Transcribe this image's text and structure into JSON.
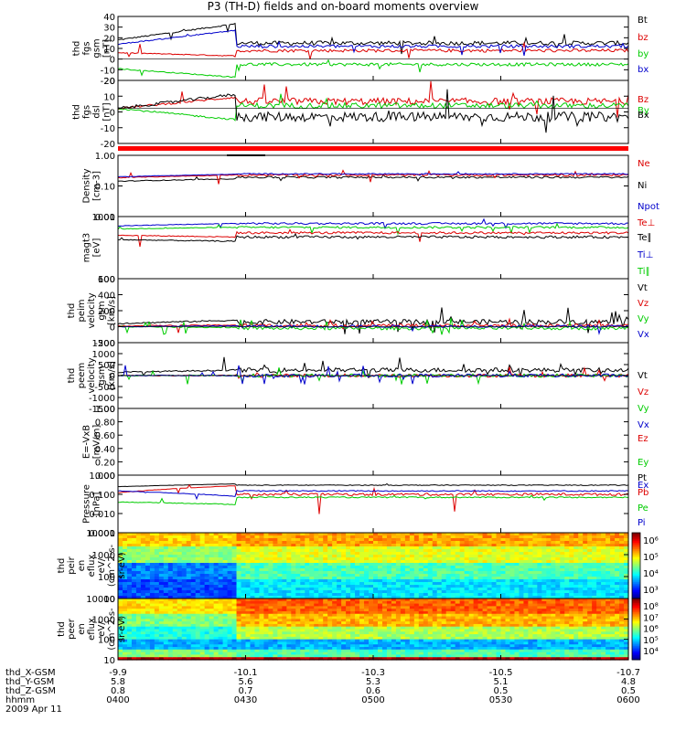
{
  "title": "P3 (TH-D) fields and on-board moments overview",
  "date_label": "2009 Apr 11",
  "time_ticks": [
    "0400",
    "0430",
    "0500",
    "0530",
    "0600"
  ],
  "ephemeris": {
    "rows": [
      {
        "label": "thd_X-GSM",
        "values": [
          "-9.9",
          "-10.1",
          "-10.3",
          "-10.5",
          "-10.7"
        ]
      },
      {
        "label": "thd_Y-GSM",
        "values": [
          "5.8",
          "5.6",
          "5.3",
          "5.1",
          "4.8"
        ]
      },
      {
        "label": "thd_Z-GSM",
        "values": [
          "0.8",
          "0.7",
          "0.6",
          "0.5",
          "0.5"
        ]
      },
      {
        "label": "hhmm",
        "values": [
          "0400",
          "0430",
          "0500",
          "0530",
          "0600"
        ]
      }
    ]
  },
  "colors": {
    "black": "#000000",
    "red": "#dd0000",
    "green": "#00cc00",
    "blue": "#0000cc"
  },
  "chart_data": [
    {
      "type": "line",
      "ylabel": [
        "thd",
        "fgs",
        "gsm",
        "[nT]"
      ],
      "ylim": [
        -20,
        40
      ],
      "yticks": [
        "40",
        "30",
        "20",
        "10",
        "0",
        "-10",
        "-20"
      ],
      "series": [
        {
          "name": "Bt",
          "color": "black"
        },
        {
          "name": "bz",
          "color": "red"
        },
        {
          "name": "by",
          "color": "green"
        },
        {
          "name": "bx",
          "color": "blue"
        }
      ]
    },
    {
      "type": "line",
      "ylabel": [
        "thd",
        "fgs",
        "dsl",
        "[nT]"
      ],
      "ylim": [
        -25,
        20
      ],
      "yticks": [
        "20",
        "10",
        "0",
        "-10",
        "-20"
      ],
      "series": [
        {
          "name": "Bz",
          "color": "red"
        },
        {
          "name": "By",
          "color": "green"
        },
        {
          "name": "Bx",
          "color": "black"
        }
      ]
    },
    {
      "type": "line",
      "ylabel": [
        "Density",
        "[cm-3]"
      ],
      "ylim": [
        0.01,
        1.5
      ],
      "log": true,
      "yticks": [
        "1.00",
        "0.10",
        "0.01"
      ],
      "series": [
        {
          "name": "Ne",
          "color": "red"
        },
        {
          "name": "Ni",
          "color": "black"
        },
        {
          "name": "Npot",
          "color": "blue"
        }
      ]
    },
    {
      "type": "line",
      "ylabel": [
        "magt3",
        "[eV]"
      ],
      "ylim": [
        100,
        10000
      ],
      "log": true,
      "yticks": [
        "1000",
        "100"
      ],
      "series": [
        {
          "name": "Te⊥",
          "color": "red"
        },
        {
          "name": "Te∥",
          "color": "black"
        },
        {
          "name": "Ti⊥",
          "color": "blue"
        },
        {
          "name": "Ti∥",
          "color": "green"
        }
      ]
    },
    {
      "type": "line",
      "ylabel": [
        "thd",
        "peim",
        "velocity",
        "gsm",
        "[km/s]"
      ],
      "ylim": [
        -200,
        600
      ],
      "yticks": [
        "600",
        "400",
        "200",
        "0",
        "-200"
      ],
      "series": [
        {
          "name": "Vt",
          "color": "black"
        },
        {
          "name": "Vz",
          "color": "red"
        },
        {
          "name": "Vy",
          "color": "green"
        },
        {
          "name": "Vx",
          "color": "blue"
        }
      ]
    },
    {
      "type": "line",
      "ylabel": [
        "thd",
        "peem",
        "velocity",
        "gsm",
        "[km/s]"
      ],
      "ylim": [
        -1500,
        1500
      ],
      "yticks": [
        "1500",
        "1000",
        "500",
        "0",
        "-500",
        "-1000",
        "-1500"
      ],
      "series": [
        {
          "name": "Vt",
          "color": "black"
        },
        {
          "name": "Vz",
          "color": "red"
        },
        {
          "name": "Vy",
          "color": "green"
        },
        {
          "name": "Vx",
          "color": "blue"
        }
      ]
    },
    {
      "type": "line",
      "ylabel": [
        "E=-VxB",
        "[mV/m]"
      ],
      "ylim": [
        0,
        1
      ],
      "yticks": [
        "1.00",
        "0.80",
        "0.60",
        "0.40",
        "0.20",
        "0.00"
      ],
      "series": [
        {
          "name": "Ez",
          "color": "red"
        },
        {
          "name": "Ey",
          "color": "green"
        },
        {
          "name": "Ex",
          "color": "blue"
        }
      ]
    },
    {
      "type": "line",
      "ylabel": [
        "Pressure",
        "[nPa]"
      ],
      "ylim": [
        0.001,
        1
      ],
      "log": true,
      "yticks": [
        "1.000",
        "0.100",
        "0.010",
        "0.001"
      ],
      "series": [
        {
          "name": "Pt",
          "color": "black"
        },
        {
          "name": "Pb",
          "color": "red"
        },
        {
          "name": "Pe",
          "color": "green"
        },
        {
          "name": "Pi",
          "color": "blue"
        }
      ]
    },
    {
      "type": "heatmap",
      "ylabel": [
        "thd",
        "peir",
        "en",
        "eflux",
        "eV/",
        "(cm^2-s-",
        "sr-eV)"
      ],
      "ylim": [
        10,
        10000
      ],
      "log": true,
      "yticks": [
        "10000",
        "1000",
        "100",
        "10"
      ],
      "colorbar": {
        "labels": [
          "10⁶",
          "10⁵",
          "10⁴",
          "10³"
        ]
      }
    },
    {
      "type": "heatmap",
      "ylabel": [
        "thd",
        "peer",
        "en",
        "eflux",
        "eV/",
        "(cm^2-s-",
        "sr-eV)"
      ],
      "ylim": [
        10,
        10000
      ],
      "log": true,
      "yticks": [
        "10000",
        "1000",
        "100",
        "10"
      ],
      "colorbar": {
        "labels": [
          "10⁸",
          "10⁷",
          "10⁶",
          "10⁵",
          "10⁴"
        ]
      }
    }
  ]
}
